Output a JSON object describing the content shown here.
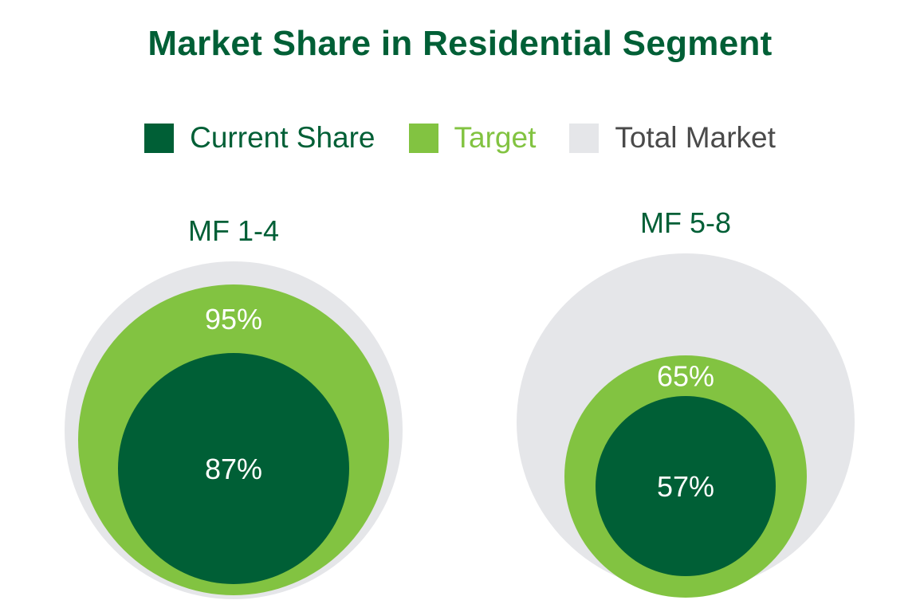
{
  "chart_data": {
    "type": "nested-circle",
    "title": "Market Share in Residential Segment",
    "legend": [
      {
        "label": "Current Share",
        "key": "current",
        "color": "#005f36",
        "label_color": "#005f36"
      },
      {
        "label": "Target",
        "key": "target",
        "color": "#82c341",
        "label_color": "#82c341"
      },
      {
        "label": "Total Market",
        "key": "total",
        "color": "#e5e6e9",
        "label_color": "#4a4a4a"
      }
    ],
    "legend_position": "top-center",
    "colors": {
      "title": "#005f36",
      "category_label": "#005f36",
      "value_label": "#ffffff"
    },
    "series_keys": [
      "total",
      "target",
      "current"
    ],
    "categories": [
      {
        "name": "MF 1-4",
        "total": 100,
        "target": 95,
        "current": 87,
        "labels": {
          "target": "95%",
          "current": "87%"
        }
      },
      {
        "name": "MF 5-8",
        "total": 100,
        "target": 65,
        "current": 57,
        "labels": {
          "target": "65%",
          "current": "57%"
        }
      }
    ]
  }
}
